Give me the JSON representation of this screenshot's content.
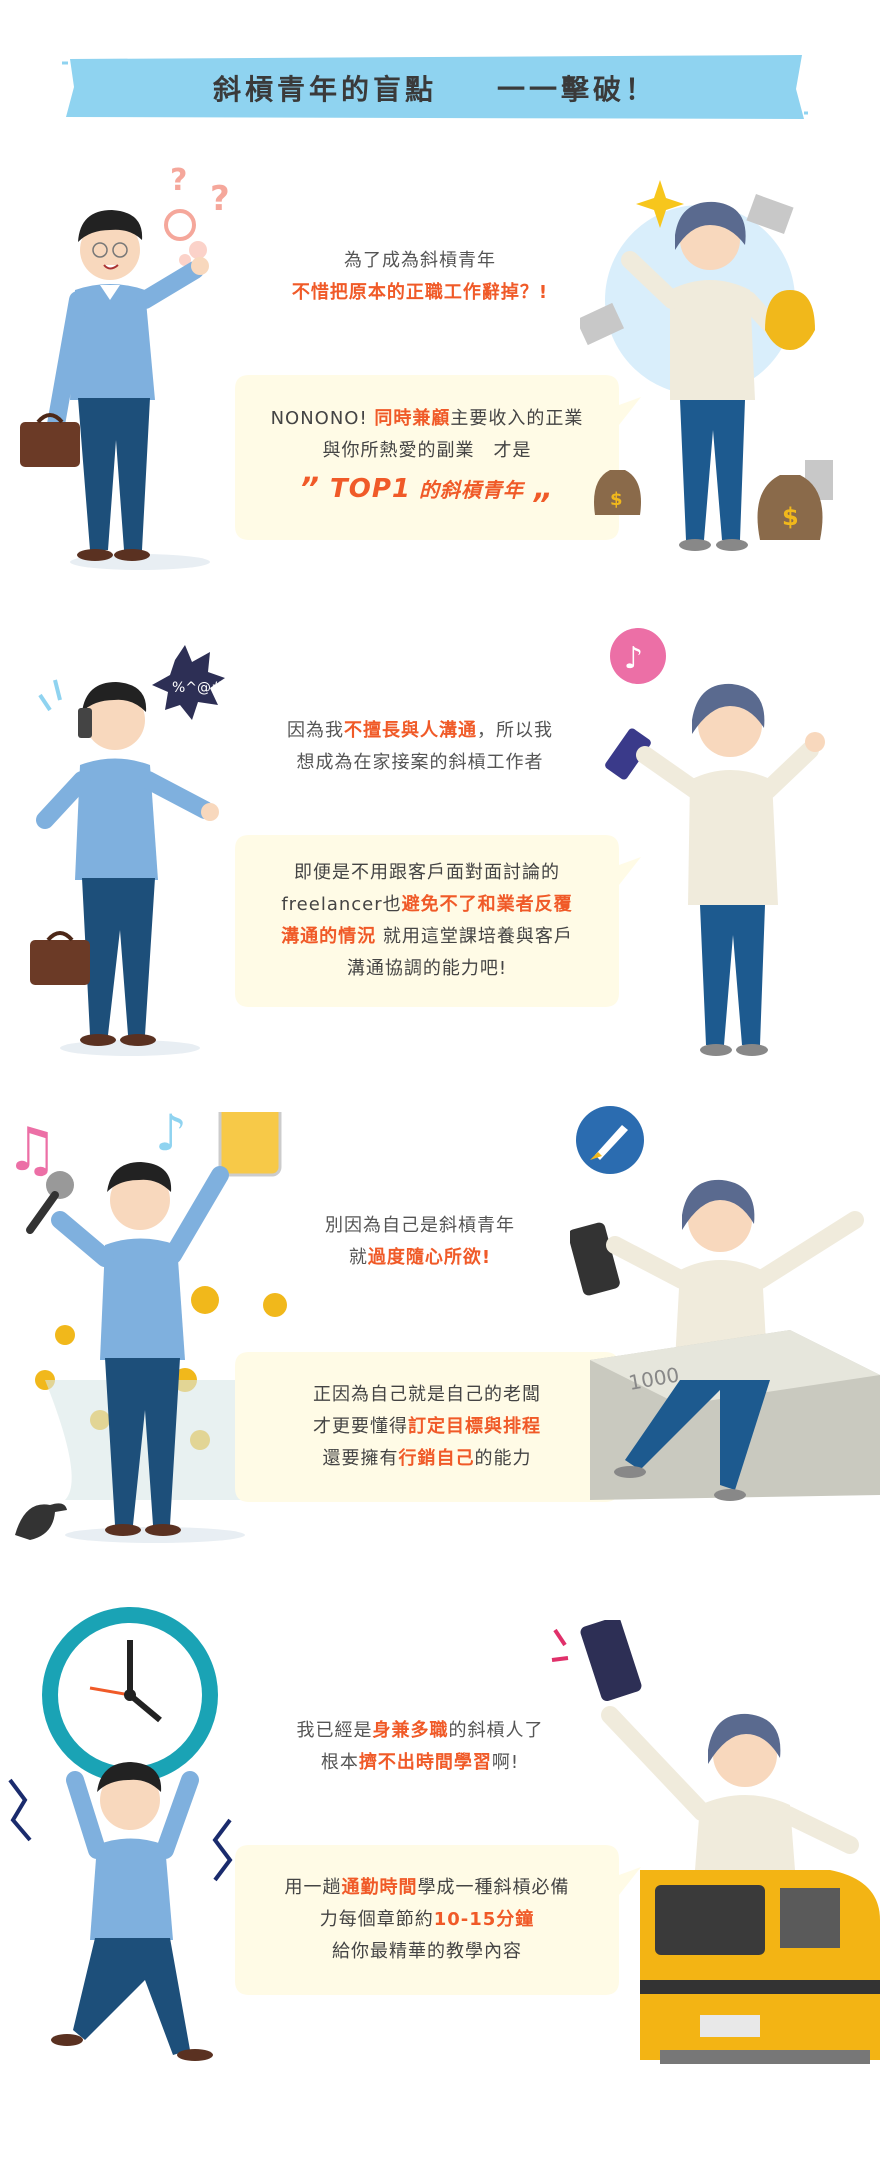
{
  "banner": {
    "part1": "斜槓青年的盲點",
    "part2": "一一擊破！"
  },
  "sections": [
    {
      "question": {
        "l1": "為了成為斜槓青年",
        "l2": "不惜把原本的正職工作辭掉？!"
      },
      "answer": {
        "l1a": "NONONO! ",
        "l1b": "同時兼顧",
        "l1c": "主要收入的正業",
        "l2": "與你所熱愛的副業　才是",
        "l3q1": "”",
        "l3a": "TOP1",
        "l3b": " 的斜槓青年",
        "l3q2": "„"
      }
    },
    {
      "question": {
        "l1a": "因為我",
        "l1b": "不擅長與人溝通",
        "l1c": "，所以我",
        "l2": "想成為在家接案的斜槓工作者"
      },
      "answer": {
        "l1": "即便是不用跟客戶面對面討論的",
        "l2a": "freelancer也",
        "l2b": "避免不了和業者反覆",
        "l3a": "溝通的情況",
        "l3b": "  就用這堂課培養與客戶",
        "l4": "溝通協調的能力吧!"
      }
    },
    {
      "question": {
        "l1": "別因為自己是斜槓青年",
        "l2a": "就",
        "l2b": "過度隨心所欲",
        "l2c": "!"
      },
      "answer": {
        "l1": "正因為自己就是自己的老闆",
        "l2a": "才更要懂得",
        "l2b": "訂定目標與排程",
        "l3a": "還要擁有",
        "l3b": "行銷自己",
        "l3c": "的能力"
      }
    },
    {
      "question": {
        "l1a": "我已經是",
        "l1b": "身兼多職",
        "l1c": "的斜槓人了",
        "l2a": "根本",
        "l2b": "擠不出時間學習",
        "l2c": "啊!"
      },
      "answer": {
        "l1a": "用一趟",
        "l1b": "通勤時間",
        "l1c": "學成一種斜槓必備",
        "l2a": "力每個章節約",
        "l2b": "10-15分鐘",
        "l3": "給你最精華的教學內容"
      }
    }
  ],
  "icons": {
    "symbols": "%^@#",
    "bill": "1000",
    "dollar": "$"
  },
  "colors": {
    "accent": "#f05a28",
    "banner": "#8fd3f0",
    "bubble": "#fffbe6",
    "shirt": "#7fb0de",
    "pants": "#1d4f7a"
  }
}
